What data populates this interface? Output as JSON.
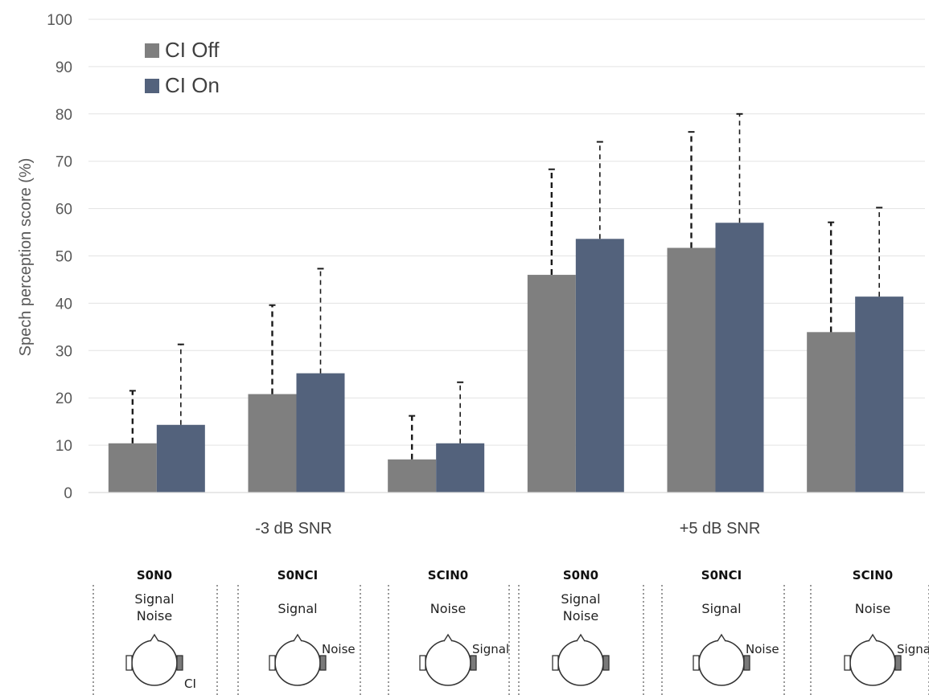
{
  "chart_data": {
    "type": "bar",
    "ylabel": "Spech perception score (%)",
    "ylim": [
      0,
      100
    ],
    "yticks": [
      "0",
      "10",
      "20",
      "30",
      "40",
      "50",
      "60",
      "70",
      "80",
      "90",
      "100"
    ],
    "grid": true,
    "legend_position": "top-left",
    "groups": [
      "-3 dB SNR",
      "+5 dB SNR"
    ],
    "categories": [
      "S0N0",
      "S0NCI",
      "SCIN0",
      "S0N0",
      "S0NCI",
      "SCIN0"
    ],
    "series": [
      {
        "name": "CI Off",
        "color": "#7f7f7f",
        "values": [
          10.4,
          20.8,
          7.0,
          46.0,
          51.7,
          33.9
        ],
        "error_upper": [
          21.5,
          39.6,
          16.2,
          68.3,
          76.2,
          57.1
        ]
      },
      {
        "name": "CI On",
        "color": "#53627c",
        "values": [
          14.3,
          25.2,
          10.4,
          53.6,
          57.0,
          41.4
        ],
        "error_upper": [
          31.3,
          47.3,
          23.3,
          74.1,
          80.0,
          60.2
        ]
      }
    ]
  },
  "conditions": [
    {
      "title": "S0N0",
      "lines": [
        "Signal",
        "Noise"
      ],
      "ear_label": "CI"
    },
    {
      "title": "S0NCI",
      "lines": [
        "Signal"
      ],
      "ear_label": "Noise"
    },
    {
      "title": "SCIN0",
      "lines": [
        "Noise"
      ],
      "ear_label": "Signal"
    },
    {
      "title": "S0N0",
      "lines": [
        "Signal",
        "Noise"
      ],
      "ear_label": ""
    },
    {
      "title": "S0NCI",
      "lines": [
        "Signal"
      ],
      "ear_label": "Noise"
    },
    {
      "title": "SCIN0",
      "lines": [
        "Noise"
      ],
      "ear_label": "Signal"
    }
  ]
}
